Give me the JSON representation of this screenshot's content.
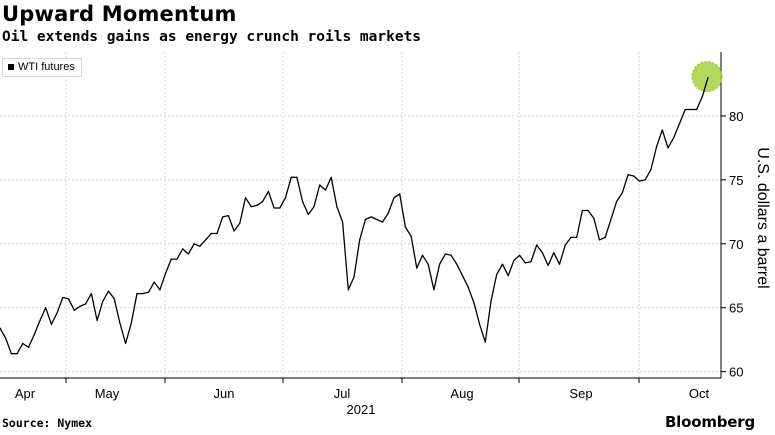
{
  "header": {
    "title": "Upward Momentum",
    "subtitle": "Oil extends gains as energy crunch roils markets"
  },
  "footer": {
    "source": "Source: Nymex",
    "brand": "Bloomberg"
  },
  "chart_data": {
    "type": "line",
    "title": "Upward Momentum",
    "subtitle": "Oil extends gains as energy crunch roils markets",
    "xlabel": "2021",
    "ylabel": "U.S. dollars a barrel",
    "ylim": [
      59.5,
      85
    ],
    "y_ticks": [
      60,
      65,
      70,
      75,
      80
    ],
    "y_tick_labels": [
      "60",
      "65",
      "70",
      "75",
      "80"
    ],
    "x_tick_labels": [
      "Apr",
      "May",
      "Jun",
      "Jul",
      "Aug",
      "Sep",
      "Oct"
    ],
    "year_label": "2021",
    "grid": true,
    "legend": "top-left",
    "highlight": "last point",
    "highlight_color": "#a6d23f",
    "series": [
      {
        "name": "WTI futures",
        "color": "#000000",
        "values": [
          63.4,
          62.6,
          61.4,
          61.4,
          62.2,
          61.9,
          62.9,
          64.0,
          65.0,
          63.7,
          64.6,
          65.8,
          65.7,
          64.8,
          65.1,
          65.3,
          66.1,
          64.0,
          65.5,
          66.3,
          65.7,
          63.8,
          62.2,
          63.8,
          66.1,
          66.1,
          66.2,
          67.0,
          66.4,
          67.7,
          68.8,
          68.8,
          69.6,
          69.2,
          70.0,
          69.8,
          70.3,
          70.8,
          70.8,
          72.1,
          72.2,
          71.0,
          71.6,
          73.6,
          72.9,
          73.0,
          73.3,
          74.1,
          72.8,
          72.8,
          73.6,
          75.2,
          75.2,
          73.3,
          72.3,
          72.9,
          74.6,
          74.2,
          75.2,
          72.9,
          71.7,
          66.4,
          67.4,
          70.3,
          71.9,
          72.1,
          71.9,
          71.7,
          72.4,
          73.6,
          73.9,
          71.3,
          70.6,
          68.1,
          69.1,
          68.4,
          66.4,
          68.4,
          69.2,
          69.1,
          68.4,
          67.5,
          66.6,
          65.4,
          63.7,
          62.3,
          65.5,
          67.6,
          68.4,
          67.5,
          68.7,
          69.1,
          68.5,
          68.6,
          69.9,
          69.3,
          68.3,
          69.3,
          68.4,
          69.9,
          70.5,
          70.5,
          72.6,
          72.6,
          72.0,
          70.3,
          70.5,
          71.9,
          73.3,
          74.0,
          75.4,
          75.3,
          74.9,
          75.0,
          75.8,
          77.6,
          78.9,
          77.5,
          78.3,
          79.4,
          80.5,
          80.5,
          80.5,
          81.5,
          83.0
        ]
      }
    ]
  }
}
